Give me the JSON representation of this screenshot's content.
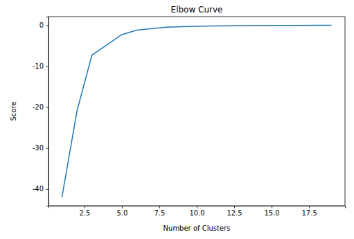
{
  "chart_data": {
    "type": "line",
    "title": "Elbow Curve",
    "x_label": "Number of Clusters",
    "y_label": "Score",
    "x": [
      1,
      2,
      3,
      4,
      5,
      6,
      7,
      8,
      9,
      10,
      11,
      12,
      13,
      14,
      15,
      16,
      17,
      18,
      19
    ],
    "values": [
      -42,
      -21,
      -7.3,
      -4.8,
      -2.3,
      -1.2,
      -0.8,
      -0.5,
      -0.35,
      -0.25,
      -0.18,
      -0.13,
      -0.1,
      -0.08,
      -0.06,
      -0.05,
      -0.04,
      -0.03,
      -0.02
    ],
    "color": "#1f77b4",
    "xlim": [
      0.1,
      19.9
    ],
    "xticks": [
      2.5,
      {
        "value": 5,
        "label": "5.0"
      },
      7.5,
      {
        "value": 10,
        "label": "10.0"
      },
      12.5,
      {
        "value": 15,
        "label": "15.0"
      },
      17.5
    ],
    "ylim": [
      -44.1,
      2.1
    ],
    "yticks": [
      -40,
      -30,
      -20,
      -10,
      0
    ],
    "grid": false
  }
}
